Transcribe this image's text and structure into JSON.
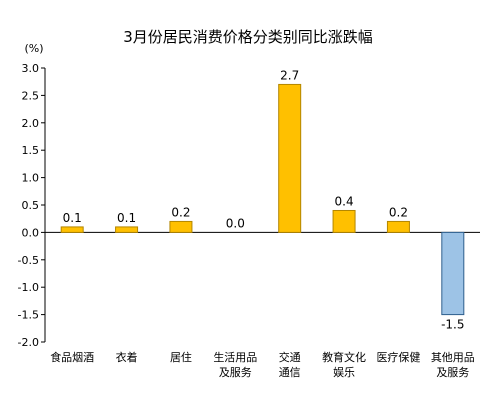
{
  "chart_data": {
    "type": "bar",
    "title": "3月份居民消费价格分类别同比涨跌幅",
    "unit_label": "(%)",
    "xlabel": "",
    "ylabel": "",
    "ylim": [
      -2.0,
      3.0
    ],
    "yticks": [
      3.0,
      2.5,
      2.0,
      1.5,
      1.0,
      0.5,
      0.0,
      -0.5,
      -1.0,
      -1.5,
      -2.0
    ],
    "ytick_labels": [
      "3.0",
      "2.5",
      "2.0",
      "1.5",
      "1.0",
      "0.5",
      "0.0",
      "-0.5",
      "-1.0",
      "-1.5",
      "-2.0"
    ],
    "categories": [
      [
        "食品烟酒"
      ],
      [
        "衣着"
      ],
      [
        "居住"
      ],
      [
        "生活用品",
        "及服务"
      ],
      [
        "交通",
        "通信"
      ],
      [
        "教育文化",
        "娱乐"
      ],
      [
        "医疗保健"
      ],
      [
        "其他用品",
        "及服务"
      ]
    ],
    "values": [
      0.1,
      0.1,
      0.2,
      0.0,
      2.7,
      0.4,
      0.2,
      -1.5
    ],
    "value_labels": [
      "0.1",
      "0.1",
      "0.2",
      "0.0",
      "2.7",
      "0.4",
      "0.2",
      "-1.5"
    ],
    "grid": false,
    "legend": "none",
    "colors": {
      "positive_fill": "#FFC000",
      "positive_stroke": "#B38600",
      "negative_fill": "#9DC3E6",
      "negative_stroke": "#2E5E8C",
      "axis": "#000000"
    }
  }
}
